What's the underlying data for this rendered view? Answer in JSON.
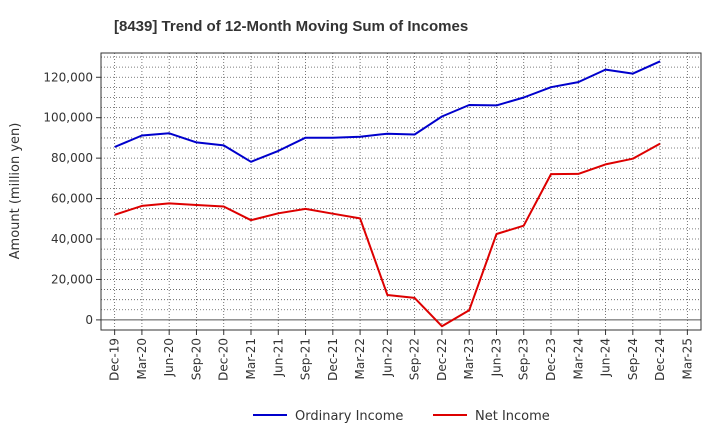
{
  "chart_data": {
    "type": "line",
    "title": "[8439]  Trend of 12-Month Moving Sum of Incomes",
    "xlabel": "",
    "ylabel": "Amount (million yen)",
    "ylim": [
      -5000,
      132000
    ],
    "yticks": [
      0,
      20000,
      40000,
      60000,
      80000,
      100000,
      120000
    ],
    "ytick_labels": [
      "0",
      "20,000",
      "40,000",
      "60,000",
      "80,000",
      "100,000",
      "120,000"
    ],
    "categories": [
      "Dec-19",
      "Mar-20",
      "Jun-20",
      "Sep-20",
      "Dec-20",
      "Mar-21",
      "Jun-21",
      "Sep-21",
      "Dec-21",
      "Mar-22",
      "Jun-22",
      "Sep-22",
      "Dec-22",
      "Mar-23",
      "Jun-23",
      "Sep-23",
      "Dec-23",
      "Mar-24",
      "Jun-24",
      "Sep-24",
      "Dec-24",
      "Mar-25"
    ],
    "grid": true,
    "legend_position": "bottom",
    "series": [
      {
        "name": "Ordinary Income",
        "color": "#0000cc",
        "values": [
          85500,
          91200,
          92300,
          87800,
          86300,
          78200,
          83600,
          90100,
          90100,
          90600,
          92100,
          91700,
          100600,
          106300,
          106100,
          110000,
          115100,
          117600,
          123800,
          121800,
          127900,
          null
        ]
      },
      {
        "name": "Net Income",
        "color": "#dd0000",
        "values": [
          52000,
          56400,
          57600,
          56800,
          56100,
          49300,
          52700,
          54900,
          52500,
          50200,
          12300,
          10900,
          -3100,
          4800,
          42500,
          46600,
          72100,
          72200,
          76900,
          79700,
          87200,
          null
        ]
      }
    ]
  }
}
